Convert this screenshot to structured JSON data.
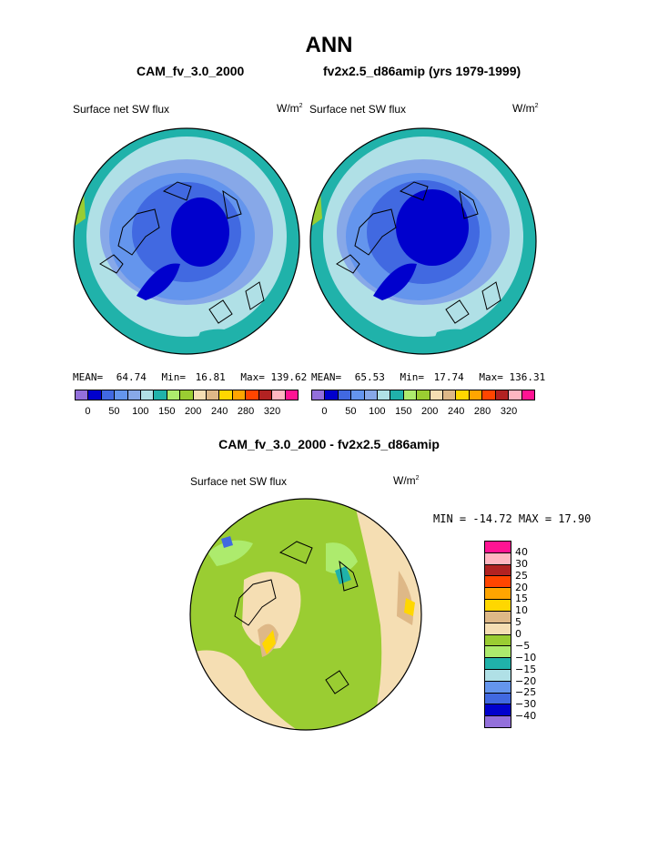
{
  "title": "ANN",
  "left_panel": {
    "case": "CAM_fv_3.0_2000",
    "variable": "Surface net SW flux",
    "units_base": "W/m",
    "units_exp": "2",
    "mean_label": "MEAN=",
    "mean": "64.74",
    "min_label": "Min=",
    "min": "16.81",
    "max_label": "Max=",
    "max": "139.62"
  },
  "right_panel": {
    "case": "fv2x2.5_d86amip (yrs 1979-1999)",
    "variable": "Surface net SW flux",
    "units_base": "W/m",
    "units_exp": "2",
    "mean_label": "MEAN=",
    "mean": "65.53",
    "min_label": "Min=",
    "min": "17.74",
    "max_label": "Max=",
    "max": "136.31"
  },
  "diff_panel": {
    "title": "CAM_fv_3.0_2000 - fv2x2.5_d86amip",
    "variable": "Surface net SW flux",
    "units_base": "W/m",
    "units_exp": "2",
    "minmax": "MIN = -14.72 MAX =  17.90"
  },
  "colors": {
    "abs_levels": [
      "#9370DB",
      "#0000CD",
      "#4169E1",
      "#6495ED",
      "#87A8E8",
      "#B0E0E6",
      "#20B2AA",
      "#ADEB6D",
      "#9ACD32",
      "#F5DEB3",
      "#DEB887",
      "#FFD700",
      "#FFA500",
      "#FF4500",
      "#B22222",
      "#FFB6C1",
      "#FF1493"
    ],
    "diff_levels": [
      "#FF1493",
      "#FFB6C1",
      "#B22222",
      "#FF4500",
      "#FFA500",
      "#FFD700",
      "#DEB887",
      "#F5DEB3",
      "#9ACD32",
      "#ADEB6D",
      "#20B2AA",
      "#B0E0E6",
      "#6495ED",
      "#4169E1",
      "#0000CD",
      "#9370DB"
    ]
  },
  "abs_ticks": [
    "0",
    "50",
    "100",
    "150",
    "200",
    "240",
    "280",
    "320"
  ],
  "diff_ticks": [
    "40",
    "30",
    "25",
    "20",
    "15",
    "10",
    "5",
    "0",
    "-5",
    "-10",
    "-15",
    "-20",
    "-25",
    "-30",
    "-40"
  ]
}
